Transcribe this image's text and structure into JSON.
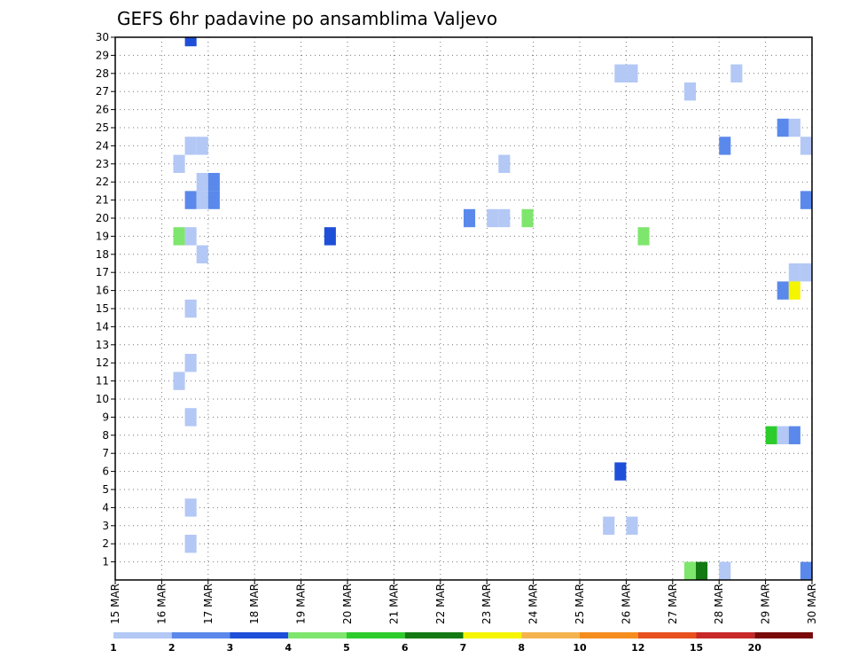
{
  "chart_data": {
    "type": "heatmap",
    "title": "GEFS 6hr padavine po ansamblima Valjevo",
    "x_tick_labels": [
      "15 MAR",
      "16 MAR",
      "17 MAR",
      "18 MAR",
      "19 MAR",
      "20 MAR",
      "21 MAR",
      "22 MAR",
      "23 MAR",
      "24 MAR",
      "25 MAR",
      "26 MAR",
      "27 MAR",
      "28 MAR",
      "29 MAR",
      "30 MAR"
    ],
    "y_tick_labels": [
      "1",
      "2",
      "3",
      "4",
      "5",
      "6",
      "7",
      "8",
      "9",
      "10",
      "11",
      "12",
      "13",
      "14",
      "15",
      "16",
      "17",
      "18",
      "19",
      "20",
      "21",
      "22",
      "23",
      "24",
      "25",
      "26",
      "27",
      "28",
      "29",
      "30"
    ],
    "xlim": [
      0,
      60
    ],
    "ylim": [
      0,
      30
    ],
    "x_unit": "6-hour steps from 15 MAR 00Z",
    "y_unit": "ensemble member",
    "grid": true,
    "colorbar": {
      "labels": [
        "1",
        "2",
        "3",
        "4",
        "5",
        "6",
        "7",
        "8",
        "10",
        "12",
        "15",
        "20"
      ],
      "colors": [
        "#b3c8f5",
        "#5a89eb",
        "#1e4fd8",
        "#7ee66d",
        "#2ccc2c",
        "#137a13",
        "#f5f500",
        "#f5b34f",
        "#f58c1e",
        "#e8501e",
        "#c82828",
        "#7a0a0a"
      ]
    },
    "cells": [
      {
        "x": 6.5,
        "y": 30,
        "v": 3.5
      },
      {
        "x": 43.5,
        "y": 28,
        "v": 1.5
      },
      {
        "x": 44.5,
        "y": 28,
        "v": 1.5
      },
      {
        "x": 53.5,
        "y": 28,
        "v": 1.5
      },
      {
        "x": 49.5,
        "y": 27,
        "v": 1.5
      },
      {
        "x": 57.5,
        "y": 25,
        "v": 2.5
      },
      {
        "x": 58.5,
        "y": 25,
        "v": 1.5
      },
      {
        "x": 6.5,
        "y": 24,
        "v": 1.5
      },
      {
        "x": 7.5,
        "y": 24,
        "v": 1.5
      },
      {
        "x": 52.5,
        "y": 24,
        "v": 2.5
      },
      {
        "x": 59.5,
        "y": 24,
        "v": 1.5
      },
      {
        "x": 5.5,
        "y": 23,
        "v": 1.5
      },
      {
        "x": 33.5,
        "y": 23,
        "v": 1.5
      },
      {
        "x": 7.5,
        "y": 22,
        "v": 1.5
      },
      {
        "x": 8.5,
        "y": 22,
        "v": 2.5
      },
      {
        "x": 6.5,
        "y": 21,
        "v": 2.5
      },
      {
        "x": 7.5,
        "y": 21,
        "v": 1.5
      },
      {
        "x": 8.5,
        "y": 21,
        "v": 2.5
      },
      {
        "x": 59.5,
        "y": 21,
        "v": 2.5
      },
      {
        "x": 30.5,
        "y": 20,
        "v": 2.5
      },
      {
        "x": 32.5,
        "y": 20,
        "v": 1.5
      },
      {
        "x": 33.5,
        "y": 20,
        "v": 1.5
      },
      {
        "x": 35.5,
        "y": 20,
        "v": 4.5
      },
      {
        "x": 5.5,
        "y": 19,
        "v": 4.5
      },
      {
        "x": 6.5,
        "y": 19,
        "v": 1.5
      },
      {
        "x": 18.5,
        "y": 19,
        "v": 3.5
      },
      {
        "x": 45.5,
        "y": 19,
        "v": 4.5
      },
      {
        "x": 7.5,
        "y": 18,
        "v": 1.5
      },
      {
        "x": 58.5,
        "y": 17,
        "v": 1.5
      },
      {
        "x": 59.5,
        "y": 17,
        "v": 1.5
      },
      {
        "x": 57.5,
        "y": 16,
        "v": 2.5
      },
      {
        "x": 58.5,
        "y": 16,
        "v": 7.5
      },
      {
        "x": 6.5,
        "y": 15,
        "v": 1.5
      },
      {
        "x": 6.5,
        "y": 12,
        "v": 1.5
      },
      {
        "x": 5.5,
        "y": 11,
        "v": 1.5
      },
      {
        "x": 6.5,
        "y": 9,
        "v": 1.5
      },
      {
        "x": 56.5,
        "y": 8,
        "v": 5.5
      },
      {
        "x": 57.5,
        "y": 8,
        "v": 1.5
      },
      {
        "x": 58.5,
        "y": 8,
        "v": 2.5
      },
      {
        "x": 43.5,
        "y": 6,
        "v": 3.5
      },
      {
        "x": 6.5,
        "y": 4,
        "v": 1.5
      },
      {
        "x": 42.5,
        "y": 3,
        "v": 1.5
      },
      {
        "x": 44.5,
        "y": 3,
        "v": 1.5
      },
      {
        "x": 6.5,
        "y": 2,
        "v": 1.5
      },
      {
        "x": 49.5,
        "y": 0.5,
        "v": 4.5
      },
      {
        "x": 50.5,
        "y": 0.5,
        "v": 6.5
      },
      {
        "x": 52.5,
        "y": 0.5,
        "v": 1.5
      },
      {
        "x": 59.5,
        "y": 0.5,
        "v": 2.5
      }
    ]
  }
}
